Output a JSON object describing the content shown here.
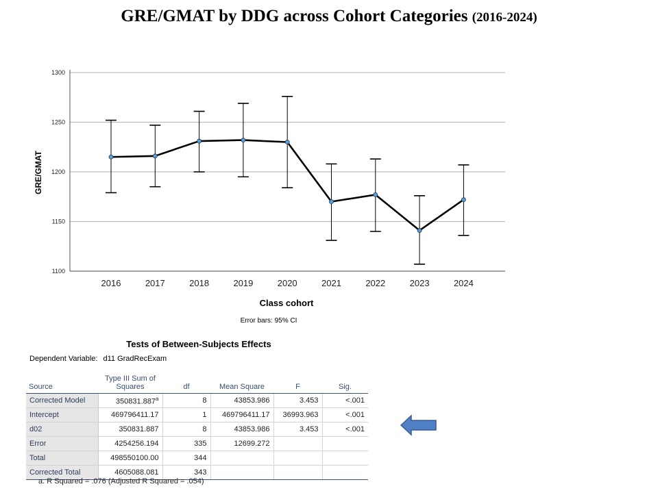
{
  "title_main": "GRE/GMAT by DDG across Cohort Categories",
  "title_sub": "(2016-2024)",
  "chart_data": {
    "type": "line",
    "title": "",
    "xlabel": "Class cohort",
    "ylabel": "GRE/GMAT",
    "ylim": [
      1100,
      1300
    ],
    "yticks": [
      1100,
      1150,
      1200,
      1250,
      1300
    ],
    "grid": true,
    "categories": [
      "2016",
      "2017",
      "2018",
      "2019",
      "2020",
      "2021",
      "2022",
      "2023",
      "2024"
    ],
    "values": [
      1215,
      1216,
      1231,
      1232,
      1230,
      1170,
      1177,
      1141,
      1172
    ],
    "ci_lower": [
      1179,
      1185,
      1200,
      1195,
      1184,
      1131,
      1140,
      1107,
      1136
    ],
    "ci_upper": [
      1252,
      1247,
      1261,
      1269,
      1276,
      1208,
      1213,
      1176,
      1207
    ],
    "note": "Error bars: 95% CI"
  },
  "table": {
    "title": "Tests of Between-Subjects Effects",
    "dep_label": "Dependent Variable:",
    "dep_value": "d11 GradRecExam",
    "headers": [
      "Source",
      "Type III Sum of Squares",
      "df",
      "Mean Square",
      "F",
      "Sig."
    ],
    "rows": [
      [
        "Corrected Model",
        "350831.887",
        "8",
        "43853.986",
        "3.453",
        "<.001"
      ],
      [
        "Intercept",
        "469796411.17",
        "1",
        "469796411.17",
        "36993.963",
        "<.001"
      ],
      [
        "d02",
        "350831.887",
        "8",
        "43853.986",
        "3.453",
        "<.001"
      ],
      [
        "Error",
        "4254256.194",
        "335",
        "12699.272",
        "",
        ""
      ],
      [
        "Total",
        "498550100.00",
        "344",
        "",
        "",
        ""
      ],
      [
        "Corrected Total",
        "4605088.081",
        "343",
        "",
        "",
        ""
      ]
    ],
    "superscript": "a",
    "footnote": "a. R Squared = .076 (Adjusted R Squared = .054)"
  },
  "arrow_color": "#4f7fc4"
}
